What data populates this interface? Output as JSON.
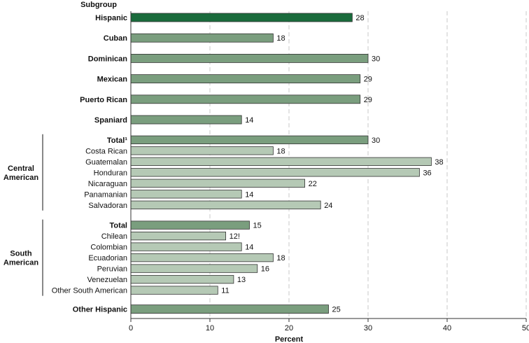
{
  "chart_data": {
    "type": "bar",
    "orientation": "horizontal",
    "header": "Subgroup",
    "xlabel": "Percent",
    "xlim": [
      0,
      50
    ],
    "xticks": [
      "0",
      "10",
      "20",
      "30",
      "40",
      "50"
    ],
    "grid": true,
    "colors": {
      "primary": "#1a6b3c",
      "subgroup": "#7a9e7e",
      "detail": "#b5c9b5",
      "outline": "#333333"
    },
    "groups": [
      {
        "label": "",
        "rows": [
          {
            "category": "Hispanic",
            "value": 28,
            "label": "28",
            "style": "primary",
            "bold": true
          }
        ]
      },
      {
        "label": "",
        "rows": [
          {
            "category": "Cuban",
            "value": 18,
            "label": "18",
            "style": "subgroup",
            "bold": true
          }
        ]
      },
      {
        "label": "",
        "rows": [
          {
            "category": "Dominican",
            "value": 30,
            "label": "30",
            "style": "subgroup",
            "bold": true
          }
        ]
      },
      {
        "label": "",
        "rows": [
          {
            "category": "Mexican",
            "value": 29,
            "label": "29",
            "style": "subgroup",
            "bold": true
          }
        ]
      },
      {
        "label": "",
        "rows": [
          {
            "category": "Puerto Rican",
            "value": 29,
            "label": "29",
            "style": "subgroup",
            "bold": true
          }
        ]
      },
      {
        "label": "",
        "rows": [
          {
            "category": "Spaniard",
            "value": 14,
            "label": "14",
            "style": "subgroup",
            "bold": true
          }
        ]
      },
      {
        "label": "Central American",
        "rows": [
          {
            "category": "Total¹",
            "value": 30,
            "label": "30",
            "style": "subgroup",
            "bold": true
          },
          {
            "category": "Costa Rican",
            "value": 18,
            "label": "18",
            "style": "detail",
            "bold": false
          },
          {
            "category": "Guatemalan",
            "value": 38,
            "label": "38",
            "style": "detail",
            "bold": false
          },
          {
            "category": "Honduran",
            "value": 36.5,
            "label": "36",
            "style": "detail",
            "bold": false
          },
          {
            "category": "Nicaraguan",
            "value": 22,
            "label": "22",
            "style": "detail",
            "bold": false
          },
          {
            "category": "Panamanian",
            "value": 14,
            "label": "14",
            "style": "detail",
            "bold": false
          },
          {
            "category": "Salvadoran",
            "value": 24,
            "label": "24",
            "style": "detail",
            "bold": false
          }
        ]
      },
      {
        "label": "South American",
        "rows": [
          {
            "category": "Total",
            "value": 15,
            "label": "15",
            "style": "subgroup",
            "bold": true
          },
          {
            "category": "Chilean",
            "value": 12,
            "label": "12!",
            "style": "detail",
            "bold": false
          },
          {
            "category": "Colombian",
            "value": 14,
            "label": "14",
            "style": "detail",
            "bold": false
          },
          {
            "category": "Ecuadorian",
            "value": 18,
            "label": "18",
            "style": "detail",
            "bold": false
          },
          {
            "category": "Peruvian",
            "value": 16,
            "label": "16",
            "style": "detail",
            "bold": false
          },
          {
            "category": "Venezuelan",
            "value": 13,
            "label": "13",
            "style": "detail",
            "bold": false
          },
          {
            "category": "Other South American",
            "value": 11,
            "label": "11",
            "style": "detail",
            "bold": false
          }
        ]
      },
      {
        "label": "",
        "rows": [
          {
            "category": "Other Hispanic",
            "value": 25,
            "label": "25",
            "style": "subgroup",
            "bold": true
          }
        ]
      }
    ]
  }
}
